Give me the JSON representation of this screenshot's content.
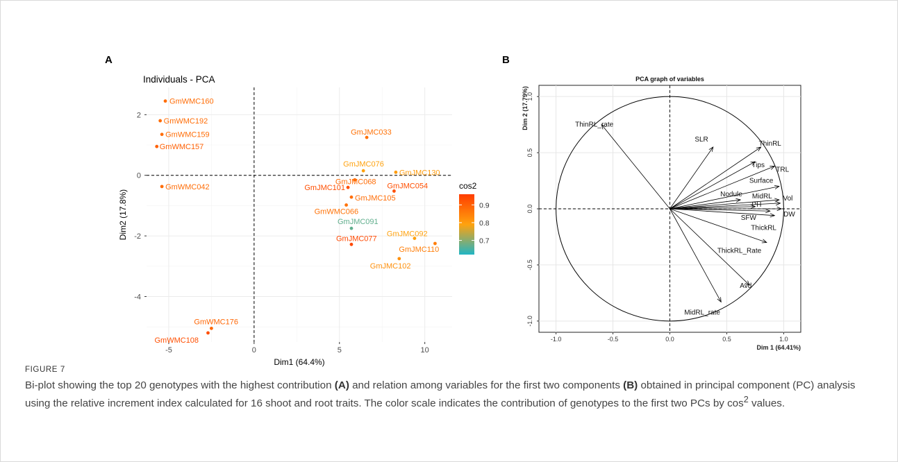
{
  "caption": {
    "figure_label": "FIGURE 7",
    "t1": "Bi-plot showing the top 20 genotypes with the highest contribution ",
    "b1": "(A)",
    "t2": " and relation among variables for the first two components ",
    "b2": "(B)",
    "t3": " obtained in principal component (PC) analysis using the relative increment index calculated for 16 shoot and root traits. The color scale indicates the contribution of genotypes to the first two PCs by cos",
    "sup": "2",
    "t4": " values."
  },
  "colors": {
    "cos2_high": "#ff3d00",
    "cos2_mid": "#ffa20e",
    "cos2_low": "#21b5c4",
    "panel_bg": "#ffffff",
    "grid": "#ebebeb"
  },
  "chart_data": [
    {
      "panel_label": "A",
      "type": "scatter",
      "title": "Individuals - PCA",
      "xlabel": "Dim1 (64.4%)",
      "ylabel": "Dim2 (17.8%)",
      "xlim": [
        -6.3,
        11.6
      ],
      "ylim": [
        -5.5,
        2.9
      ],
      "xticks": [
        -5,
        0,
        5,
        10
      ],
      "yticks": [
        -4,
        -2,
        0,
        2
      ],
      "grid": true,
      "reference_lines": {
        "x": 0,
        "y": 0,
        "style": "dashed"
      },
      "legend": {
        "title": "cos2",
        "ticks": [
          0.7,
          0.8,
          0.9
        ],
        "range": [
          0.62,
          0.96
        ],
        "placement": "right"
      },
      "points": [
        {
          "name": "GmWMC160",
          "x": -5.2,
          "y": 2.45,
          "cos2": 0.88
        },
        {
          "name": "GmWMC192",
          "x": -5.5,
          "y": 1.8,
          "cos2": 0.88
        },
        {
          "name": "GmWMC159",
          "x": -5.4,
          "y": 1.35,
          "cos2": 0.88
        },
        {
          "name": "GmWMC157",
          "x": -5.7,
          "y": 0.95,
          "cos2": 0.9
        },
        {
          "name": "GmWMC042",
          "x": -5.4,
          "y": -0.37,
          "cos2": 0.88
        },
        {
          "name": "GmJMC033",
          "x": 6.6,
          "y": 1.25,
          "cos2": 0.87
        },
        {
          "name": "GmJMC076",
          "x": 6.4,
          "y": 0.15,
          "cos2": 0.79
        },
        {
          "name": "GmJMC130",
          "x": 8.3,
          "y": 0.1,
          "cos2": 0.8
        },
        {
          "name": "GmJMC068",
          "x": 5.9,
          "y": -0.15,
          "cos2": 0.88
        },
        {
          "name": "GmJMC101",
          "x": 5.5,
          "y": -0.4,
          "cos2": 0.93
        },
        {
          "name": "GmJMC054",
          "x": 8.2,
          "y": -0.52,
          "cos2": 0.93
        },
        {
          "name": "GmJMC105",
          "x": 5.7,
          "y": -0.72,
          "cos2": 0.88
        },
        {
          "name": "GmWMC066",
          "x": 5.4,
          "y": -0.98,
          "cos2": 0.87
        },
        {
          "name": "GmJMC091",
          "x": 5.7,
          "y": -1.75,
          "cos2": 0.67
        },
        {
          "name": "GmJMC092",
          "x": 9.4,
          "y": -2.08,
          "cos2": 0.79
        },
        {
          "name": "GmJMC077",
          "x": 5.7,
          "y": -2.28,
          "cos2": 0.94
        },
        {
          "name": "GmJMC110",
          "x": 10.6,
          "y": -2.25,
          "cos2": 0.85
        },
        {
          "name": "GmJMC102",
          "x": 8.5,
          "y": -2.75,
          "cos2": 0.82
        },
        {
          "name": "GmWMC176",
          "x": -2.5,
          "y": -5.05,
          "cos2": 0.89
        },
        {
          "name": "GmWMC108",
          "x": -2.7,
          "y": -5.2,
          "cos2": 0.93
        }
      ]
    },
    {
      "panel_label": "B",
      "type": "scatter",
      "title": "PCA graph of variables",
      "xlabel": "Dim 1 (64.41%)",
      "ylabel": "Dim 2 (17.79%)",
      "xlim": [
        -1.15,
        1.15
      ],
      "ylim": [
        -1.1,
        1.1
      ],
      "xticks": [
        -1.0,
        -0.5,
        0.0,
        0.5,
        1.0
      ],
      "yticks": [
        -1.0,
        -0.5,
        0.0,
        0.5,
        1.0
      ],
      "grid": true,
      "unit_circle": true,
      "reference_lines": {
        "x": 0,
        "y": 0,
        "style": "dashed"
      },
      "vectors": [
        {
          "name": "ThinRL_rate",
          "x": -0.6,
          "y": 0.75
        },
        {
          "name": "SLR",
          "x": 0.38,
          "y": 0.55
        },
        {
          "name": "ThinRL",
          "x": 0.8,
          "y": 0.55
        },
        {
          "name": "Tips",
          "x": 0.75,
          "y": 0.42
        },
        {
          "name": "TRL",
          "x": 0.92,
          "y": 0.38
        },
        {
          "name": "Surface",
          "x": 0.96,
          "y": 0.2
        },
        {
          "name": "MidRL",
          "x": 0.96,
          "y": 0.08
        },
        {
          "name": "Vol",
          "x": 0.97,
          "y": 0.05
        },
        {
          "name": "Nodule",
          "x": 0.62,
          "y": 0.08
        },
        {
          "name": "PH",
          "x": 0.75,
          "y": 0.02
        },
        {
          "name": "DW",
          "x": 0.98,
          "y": 0.0
        },
        {
          "name": "SFW",
          "x": 0.88,
          "y": -0.02
        },
        {
          "name": "ThickRL",
          "x": 0.92,
          "y": -0.06
        },
        {
          "name": "ThickRL_Rate",
          "x": 0.85,
          "y": -0.3
        },
        {
          "name": "Avd",
          "x": 0.7,
          "y": -0.68
        },
        {
          "name": "MidRL_rate",
          "x": 0.45,
          "y": -0.83
        }
      ]
    }
  ]
}
